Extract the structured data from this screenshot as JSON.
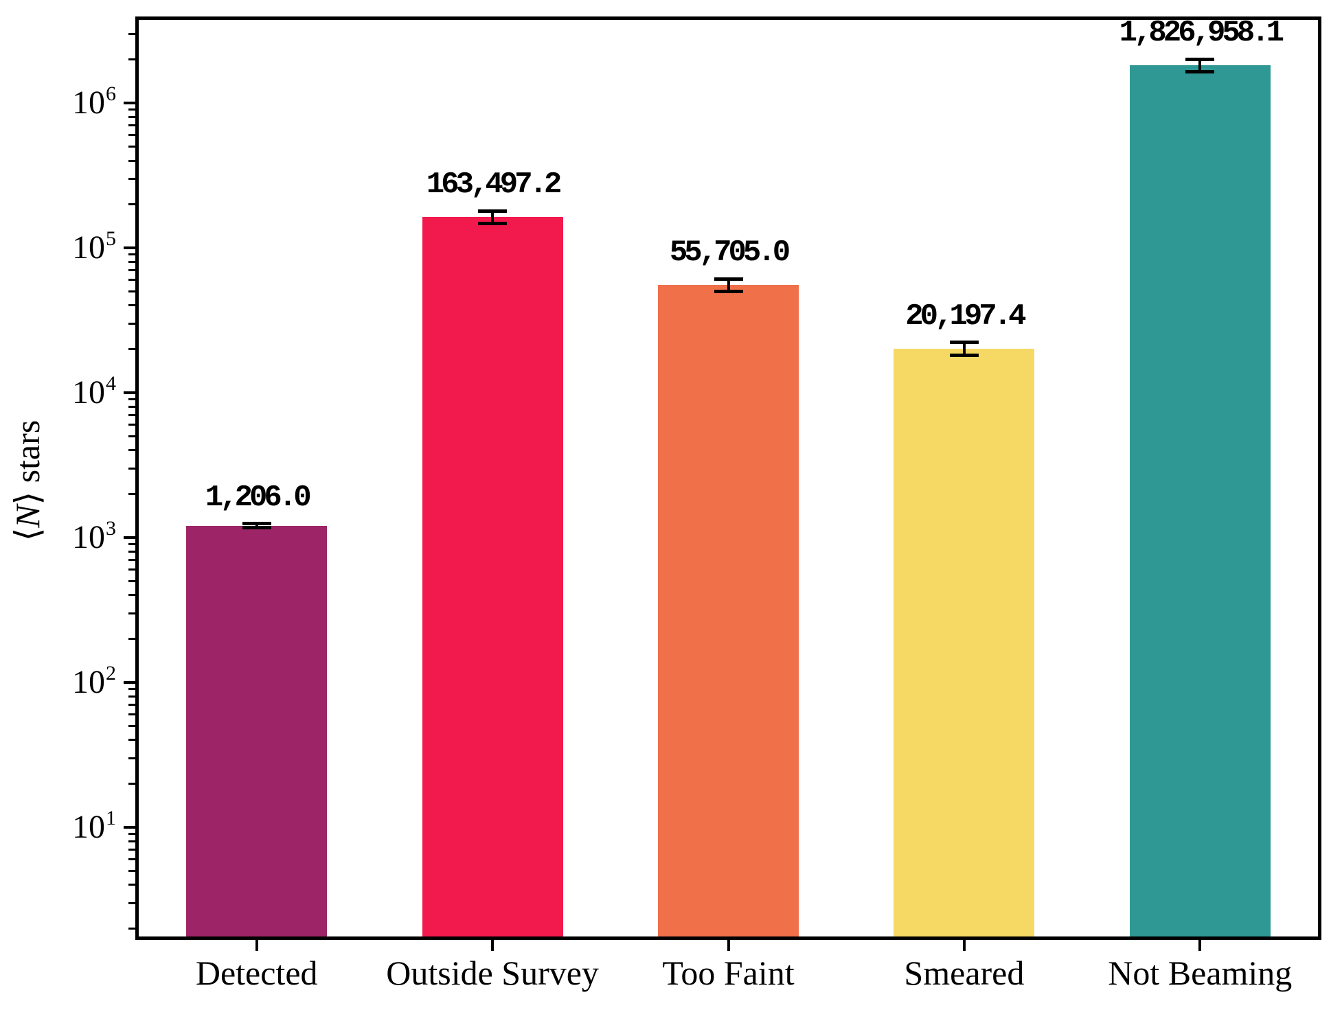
{
  "chart_data": {
    "type": "bar",
    "yscale": "log",
    "title": "",
    "xlabel": "",
    "ylabel_text": "⟨N⟩ stars",
    "ylabel": {
      "pre": "⟨",
      "variable": "N",
      "post": "⟩ stars"
    },
    "categories": [
      "Detected",
      "Outside Survey",
      "Too Faint",
      "Smeared",
      "Not Beaming"
    ],
    "values": [
      1206.0,
      163497.2,
      55705.0,
      20197.4,
      1826958.1
    ],
    "value_labels": [
      "1,206.0",
      "163,497.2",
      "55,705.0",
      "20,197.4",
      "1,826,958.1"
    ],
    "errors": [
      40,
      16000,
      5500,
      2000,
      180000
    ],
    "bar_colors": [
      "#9D2567",
      "#F21A4C",
      "#F0704A",
      "#F6D965",
      "#2F9894"
    ],
    "error_bar_color": "#000000",
    "axis_color": "#000000",
    "background_color": "#ffffff",
    "ylim": [
      1.76,
      3750000
    ],
    "ytick_base": "10",
    "ytick_exponents": [
      1,
      2,
      3,
      4,
      5,
      6
    ],
    "grid": false,
    "legend": false
  }
}
